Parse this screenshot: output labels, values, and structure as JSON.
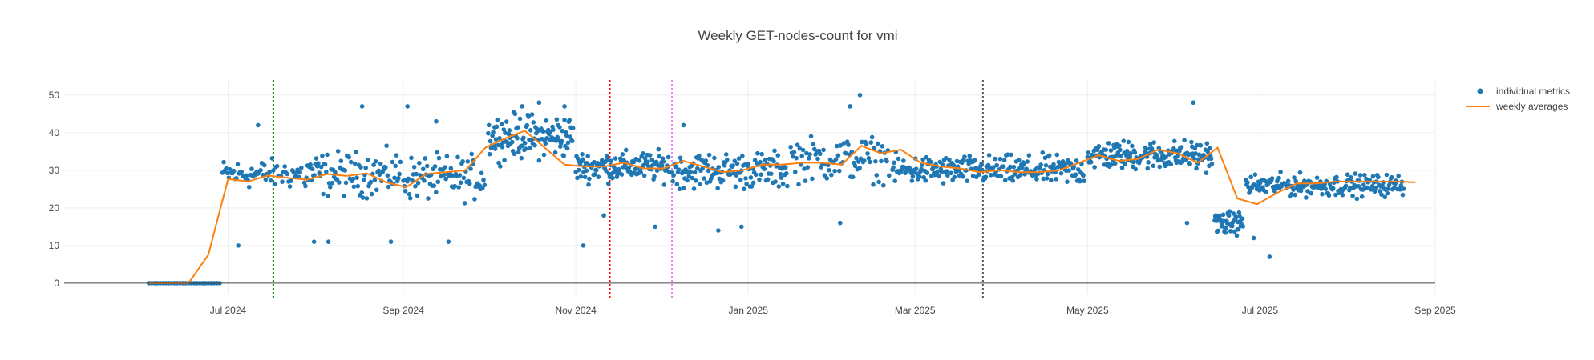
{
  "chart_data": {
    "type": "scatter",
    "title": "Weekly GET-nodes-count for vmi",
    "xlabel": "",
    "ylabel": "",
    "x_axis": {
      "type": "date",
      "range": [
        "2024-05-04",
        "2025-09-01"
      ],
      "ticks": [
        {
          "date": "2024-07-01",
          "label": "Jul 2024"
        },
        {
          "date": "2024-09-01",
          "label": "Sep 2024"
        },
        {
          "date": "2024-11-01",
          "label": "Nov 2024"
        },
        {
          "date": "2025-01-01",
          "label": "Jan 2025"
        },
        {
          "date": "2025-03-01",
          "label": "Mar 2025"
        },
        {
          "date": "2025-05-01",
          "label": "May 2025"
        },
        {
          "date": "2025-07-01",
          "label": "Jul 2025"
        },
        {
          "date": "2025-09-01",
          "label": "Sep 2025"
        }
      ]
    },
    "y_axis": {
      "range": [
        -3,
        54
      ],
      "ticks": [
        0,
        10,
        20,
        30,
        40,
        50
      ]
    },
    "grid": true,
    "legend_position": "top-right",
    "vertical_lines": [
      {
        "date": "2024-07-17",
        "color": "#008000",
        "style": "dotted"
      },
      {
        "date": "2024-11-13",
        "color": "#ff0000",
        "style": "dotted"
      },
      {
        "date": "2024-12-05",
        "color": "#ee82ee",
        "style": "dotted"
      },
      {
        "date": "2025-03-25",
        "color": "#555555",
        "style": "dotted"
      }
    ],
    "series": [
      {
        "name": "individual metrics",
        "mode": "markers",
        "color": "#1f77b4",
        "segments": [
          {
            "start": "2024-06-03",
            "end": "2024-06-28",
            "every_days": 1,
            "base": 0,
            "spread": 0
          },
          {
            "start": "2024-06-29",
            "end": "2024-07-27",
            "every_days": 0.45,
            "base": 29,
            "spread": 4,
            "outliers": [
              [
                0.2,
                10
              ],
              [
                0.45,
                42
              ]
            ]
          },
          {
            "start": "2024-07-28",
            "end": "2024-08-31",
            "every_days": 0.35,
            "base": 29,
            "spread": 6,
            "outliers": [
              [
                0.1,
                11
              ],
              [
                0.25,
                11
              ],
              [
                0.6,
                47
              ],
              [
                0.9,
                11
              ]
            ]
          },
          {
            "start": "2024-09-01",
            "end": "2024-09-30",
            "every_days": 0.35,
            "base": 28,
            "spread": 6,
            "outliers": [
              [
                0.05,
                47
              ],
              [
                0.4,
                43
              ],
              [
                0.55,
                11
              ]
            ]
          },
          {
            "start": "2024-10-01",
            "end": "2024-10-31",
            "every_days": 0.25,
            "base": 39,
            "spread": 6,
            "outliers": [
              [
                0.4,
                47
              ],
              [
                0.6,
                48
              ],
              [
                0.9,
                47
              ]
            ]
          },
          {
            "start": "2024-11-01",
            "end": "2024-12-04",
            "every_days": 0.25,
            "base": 31,
            "spread": 4,
            "outliers": [
              [
                0.08,
                10
              ],
              [
                0.3,
                18
              ],
              [
                0.85,
                15
              ]
            ]
          },
          {
            "start": "2024-12-05",
            "end": "2025-01-15",
            "every_days": 0.3,
            "base": 30,
            "spread": 5,
            "outliers": [
              [
                0.4,
                14
              ],
              [
                0.6,
                15
              ],
              [
                0.1,
                42
              ]
            ]
          },
          {
            "start": "2025-01-16",
            "end": "2025-02-20",
            "every_days": 0.4,
            "base": 33,
            "spread": 6,
            "outliers": [
              [
                0.6,
                47
              ],
              [
                0.7,
                50
              ],
              [
                0.5,
                16
              ]
            ]
          },
          {
            "start": "2025-02-21",
            "end": "2025-04-30",
            "every_days": 0.3,
            "base": 30,
            "spread": 4,
            "outliers": []
          },
          {
            "start": "2025-05-01",
            "end": "2025-06-14",
            "every_days": 0.25,
            "base": 34,
            "spread": 4,
            "outliers": [
              [
                0.85,
                48
              ],
              [
                0.8,
                16
              ]
            ]
          },
          {
            "start": "2025-06-15",
            "end": "2025-06-25",
            "every_days": 0.2,
            "base": 16,
            "spread": 3,
            "outliers": []
          },
          {
            "start": "2025-06-26",
            "end": "2025-08-21",
            "every_days": 0.3,
            "base": 26,
            "spread": 3,
            "outliers": [
              [
                0.15,
                7
              ],
              [
                0.05,
                12
              ]
            ]
          }
        ]
      },
      {
        "name": "weekly averages",
        "mode": "lines",
        "color": "#ff7f0e",
        "x": [
          "2024-06-03",
          "2024-06-10",
          "2024-06-17",
          "2024-06-24",
          "2024-07-01",
          "2024-07-08",
          "2024-07-15",
          "2024-07-22",
          "2024-07-29",
          "2024-08-05",
          "2024-08-12",
          "2024-08-19",
          "2024-08-26",
          "2024-09-02",
          "2024-09-09",
          "2024-09-16",
          "2024-09-23",
          "2024-09-30",
          "2024-10-07",
          "2024-10-14",
          "2024-10-21",
          "2024-10-28",
          "2024-11-04",
          "2024-11-11",
          "2024-11-18",
          "2024-11-25",
          "2024-12-02",
          "2024-12-09",
          "2024-12-16",
          "2024-12-23",
          "2024-12-30",
          "2025-01-06",
          "2025-01-13",
          "2025-01-20",
          "2025-01-27",
          "2025-02-03",
          "2025-02-10",
          "2025-02-17",
          "2025-02-24",
          "2025-03-03",
          "2025-03-10",
          "2025-03-17",
          "2025-03-24",
          "2025-03-31",
          "2025-04-07",
          "2025-04-14",
          "2025-04-21",
          "2025-04-28",
          "2025-05-05",
          "2025-05-12",
          "2025-05-19",
          "2025-05-26",
          "2025-06-02",
          "2025-06-09",
          "2025-06-16",
          "2025-06-23",
          "2025-06-30",
          "2025-07-07",
          "2025-07-14",
          "2025-07-21",
          "2025-07-28",
          "2025-08-04",
          "2025-08-11",
          "2025-08-18",
          "2025-08-25"
        ],
        "y": [
          0,
          0,
          0,
          7.5,
          27.7,
          27,
          28.6,
          28,
          27.5,
          29,
          28.5,
          29.2,
          26.8,
          25.5,
          29,
          29.5,
          30,
          36,
          38.5,
          40.5,
          36,
          31.5,
          31,
          31,
          32,
          30.5,
          30.5,
          32.5,
          31,
          29.5,
          30,
          31.5,
          31.5,
          32,
          32,
          31.5,
          36.5,
          34.5,
          35.5,
          32,
          31,
          30.5,
          29.5,
          30,
          29.5,
          29.5,
          30,
          32,
          34,
          32.5,
          33,
          35.5,
          34.5,
          32,
          36,
          22.5,
          21,
          24,
          26.5,
          26.5,
          27,
          27,
          27,
          27,
          26.8
        ]
      }
    ]
  }
}
